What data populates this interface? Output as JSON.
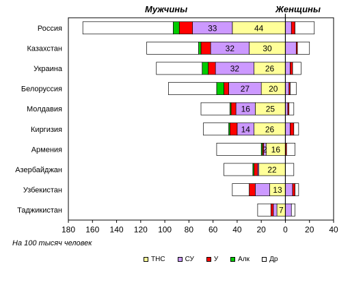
{
  "chart_data": {
    "type": "bar",
    "orientation": "horizontal-stacked-butterfly",
    "headers": {
      "left": "Мужчины",
      "right": "Женщины"
    },
    "note": "На 100 тысяч человек",
    "x_axis": {
      "min": -180,
      "max": 40,
      "ticks": [
        -180,
        -160,
        -140,
        -120,
        -100,
        -80,
        -60,
        -40,
        -20,
        0,
        20,
        40
      ],
      "tick_labels": [
        "180",
        "160",
        "140",
        "120",
        "100",
        "80",
        "60",
        "40",
        "20",
        "0",
        "20",
        "40"
      ]
    },
    "categories": [
      "Россия",
      "Казахстан",
      "Украина",
      "Белоруссия",
      "Молдавия",
      "Киргизия",
      "Армения",
      "Азербайджан",
      "Узбекистан",
      "Таджикистан"
    ],
    "series_order_from_center": [
      "ТНС",
      "СУ",
      "У",
      "Алк",
      "Др"
    ],
    "legend": [
      {
        "key": "ТНС",
        "label": "ТНС",
        "color": "#ffff99"
      },
      {
        "key": "СУ",
        "label": "СУ",
        "color": "#cc99ff"
      },
      {
        "key": "У",
        "label": "У",
        "color": "#ff0000"
      },
      {
        "key": "Алк",
        "label": "Алк",
        "color": "#00cc00"
      },
      {
        "key": "Др",
        "label": "Др",
        "color": "#ffffff"
      }
    ],
    "men": [
      {
        "ТНС": 44,
        "СУ": 33,
        "У": 11,
        "Алк": 5,
        "Др": 75
      },
      {
        "ТНС": 30,
        "СУ": 32,
        "У": 8,
        "Алк": 2,
        "Др": 43
      },
      {
        "ТНС": 26,
        "СУ": 32,
        "У": 6,
        "Алк": 5,
        "Др": 38
      },
      {
        "ТНС": 20,
        "СУ": 27,
        "У": 4,
        "Алк": 6,
        "Др": 40
      },
      {
        "ТНС": 25,
        "СУ": 16,
        "У": 4,
        "Алк": 1,
        "Др": 24
      },
      {
        "ТНС": 26,
        "СУ": 14,
        "У": 6,
        "Алк": 1,
        "Др": 21
      },
      {
        "ТНС": 16,
        "СУ": 2,
        "У": 1,
        "Алк": 1,
        "Др": 37
      },
      {
        "ТНС": 22,
        "СУ": 1,
        "У": 3,
        "Алк": 1,
        "Др": 24
      },
      {
        "ТНС": 13,
        "СУ": 12,
        "У": 5,
        "Алк": 0,
        "Др": 14
      },
      {
        "ТНС": 7,
        "СУ": 3,
        "У": 2,
        "Алк": 0,
        "Др": 11
      }
    ],
    "women": [
      {
        "СУ": 5,
        "У": 3,
        "Алк": 0,
        "Др": 16
      },
      {
        "СУ": 9,
        "У": 1,
        "Алк": 0,
        "Др": 10
      },
      {
        "СУ": 4,
        "У": 2,
        "Алк": 0,
        "Др": 7
      },
      {
        "СУ": 3,
        "У": 1,
        "Алк": 0,
        "Др": 5
      },
      {
        "СУ": 2,
        "У": 1,
        "Алк": 0,
        "Др": 4
      },
      {
        "СУ": 4,
        "У": 3,
        "Алк": 0,
        "Др": 4
      },
      {
        "СУ": 0,
        "У": 1,
        "Алк": 0,
        "Др": 7
      },
      {
        "СУ": 0,
        "У": 0,
        "Алк": 0,
        "Др": 7
      },
      {
        "СУ": 6,
        "У": 2,
        "Алк": 0,
        "Др": 3
      },
      {
        "СУ": 5,
        "У": 0,
        "Алк": 0,
        "Др": 3
      }
    ],
    "data_labels_men": [
      {
        "ТНС": "44",
        "СУ": "33"
      },
      {
        "ТНС": "30",
        "СУ": "32"
      },
      {
        "ТНС": "26",
        "СУ": "32"
      },
      {
        "ТНС": "20",
        "СУ": "27"
      },
      {
        "ТНС": "25",
        "СУ": "16"
      },
      {
        "ТНС": "26",
        "СУ": "14"
      },
      {
        "ТНС": "16",
        "СУ": "2"
      },
      {
        "ТНС": "22"
      },
      {
        "ТНС": "13"
      },
      {
        "ТНС": "7"
      }
    ]
  }
}
